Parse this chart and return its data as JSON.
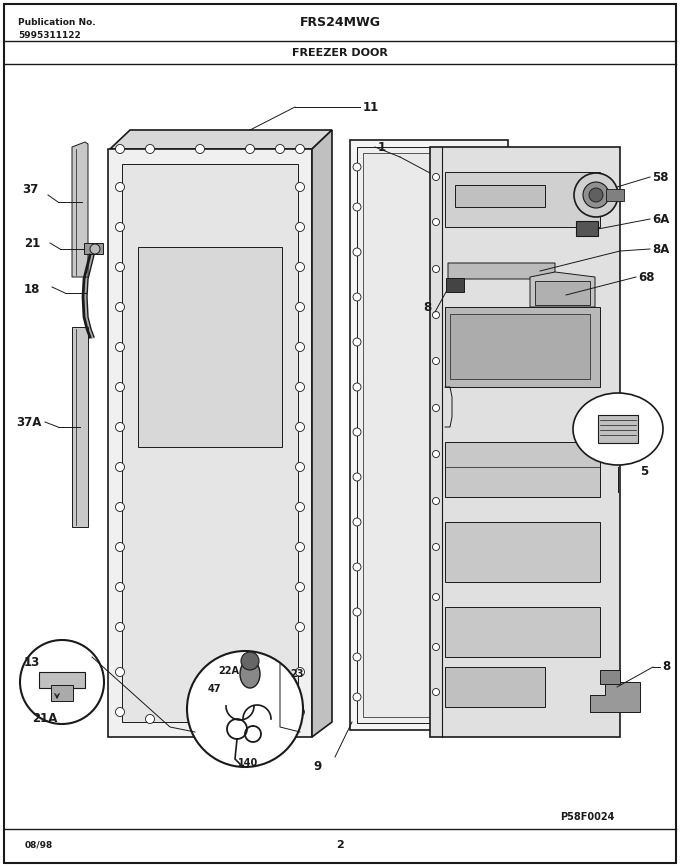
{
  "title_model": "FRS24MWG",
  "title_section": "FREEZER DOOR",
  "pub_label": "Publication No.",
  "pub_number": "5995311122",
  "date": "08/98",
  "page": "2",
  "figure_id": "P58F0024",
  "bg_color": "#ffffff",
  "lc": "#1a1a1a",
  "fc_light": "#e8e8e8",
  "fc_mid": "#cccccc",
  "fc_dark": "#aaaaaa"
}
